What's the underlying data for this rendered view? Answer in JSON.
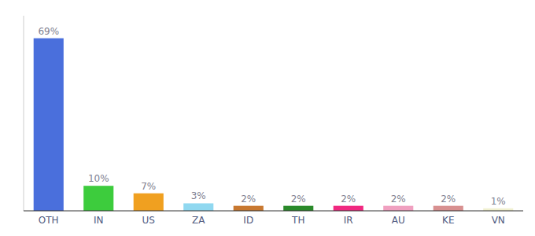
{
  "chart_data": {
    "type": "bar",
    "categories": [
      "OTH",
      "IN",
      "US",
      "ZA",
      "ID",
      "TH",
      "IR",
      "AU",
      "KE",
      "VN"
    ],
    "values": [
      69,
      10,
      7,
      3,
      2,
      2,
      2,
      2,
      2,
      1
    ],
    "value_labels": [
      "69%",
      "10%",
      "7%",
      "3%",
      "2%",
      "2%",
      "2%",
      "2%",
      "2%",
      "1%"
    ],
    "colors": [
      "#4a6fdc",
      "#3dcc3d",
      "#f0a020",
      "#90d8f0",
      "#c87830",
      "#2a8a2a",
      "#f02880",
      "#f0a0c0",
      "#d89090",
      "#f0f0d0"
    ],
    "ylim": [
      0,
      78
    ],
    "data_labels": true,
    "tick_labels": "x",
    "grid": false
  }
}
